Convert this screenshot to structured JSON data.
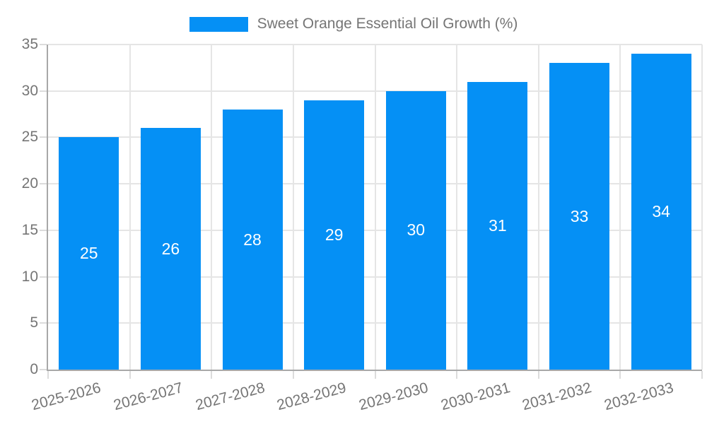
{
  "legend": {
    "label": "Sweet Orange Essential Oil Growth (%)"
  },
  "chart_data": {
    "type": "bar",
    "title": "Sweet Orange Essential Oil Growth (%)",
    "categories": [
      "2025-2026",
      "2026-2027",
      "2027-2028",
      "2028-2029",
      "2029-2030",
      "2030-2031",
      "2031-2032",
      "2032-2033"
    ],
    "values": [
      25,
      26,
      28,
      29,
      30,
      31,
      33,
      34
    ],
    "data_labels": [
      "25",
      "26",
      "28",
      "29",
      "30",
      "31",
      "33",
      "34"
    ],
    "ytick_labels": [
      "0",
      "5",
      "10",
      "15",
      "20",
      "25",
      "30",
      "35"
    ],
    "yticks": [
      0,
      5,
      10,
      15,
      20,
      25,
      30,
      35
    ],
    "ylim": [
      0,
      35
    ],
    "xlabel": "",
    "ylabel": "",
    "grid": true,
    "legend_position": "top",
    "x_label_rotation_deg": -15,
    "colors": {
      "bar": "#0590f5",
      "data_label": "#ffffff",
      "axis_text": "#757575",
      "gridline": "#e5e5e5",
      "tick": "#dcdcdc",
      "axis_line": "#a8a8a8",
      "background": "#ffffff"
    }
  }
}
